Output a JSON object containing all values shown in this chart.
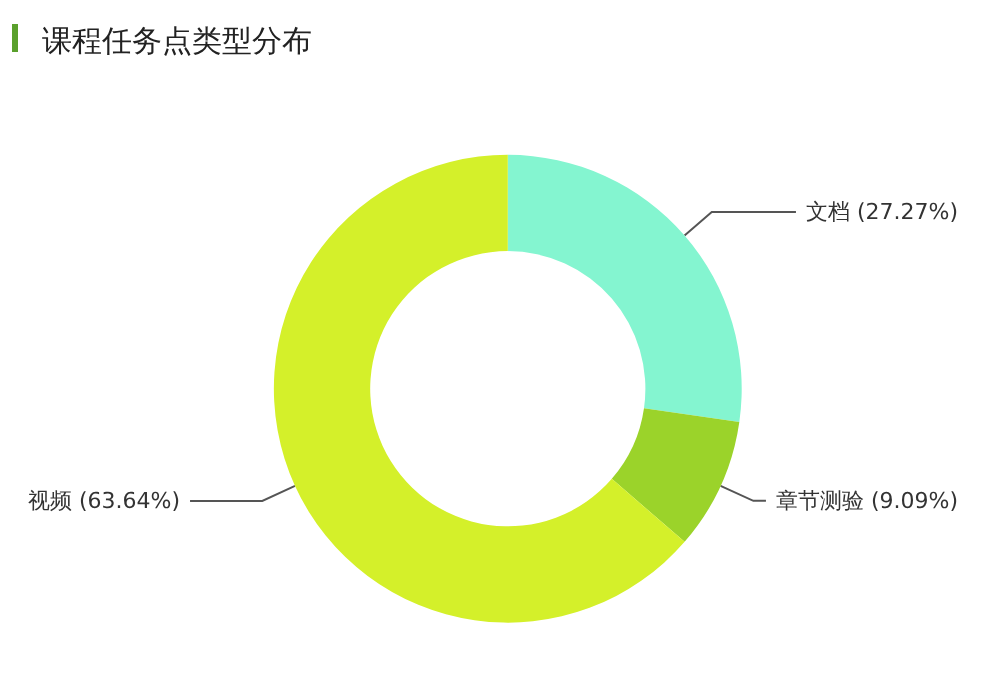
{
  "chart_data": {
    "type": "donut",
    "title": "课程任务点类型分布",
    "categories": [
      "文档",
      "章节测验",
      "视频"
    ],
    "values": [
      27.27,
      9.09,
      63.64
    ],
    "value_labels": [
      "(27.27%)",
      "(9.09%)",
      "(63.64%)"
    ],
    "colors": [
      "#84f5d0",
      "#9bd32a",
      "#d4f02a"
    ],
    "legend": false
  }
}
